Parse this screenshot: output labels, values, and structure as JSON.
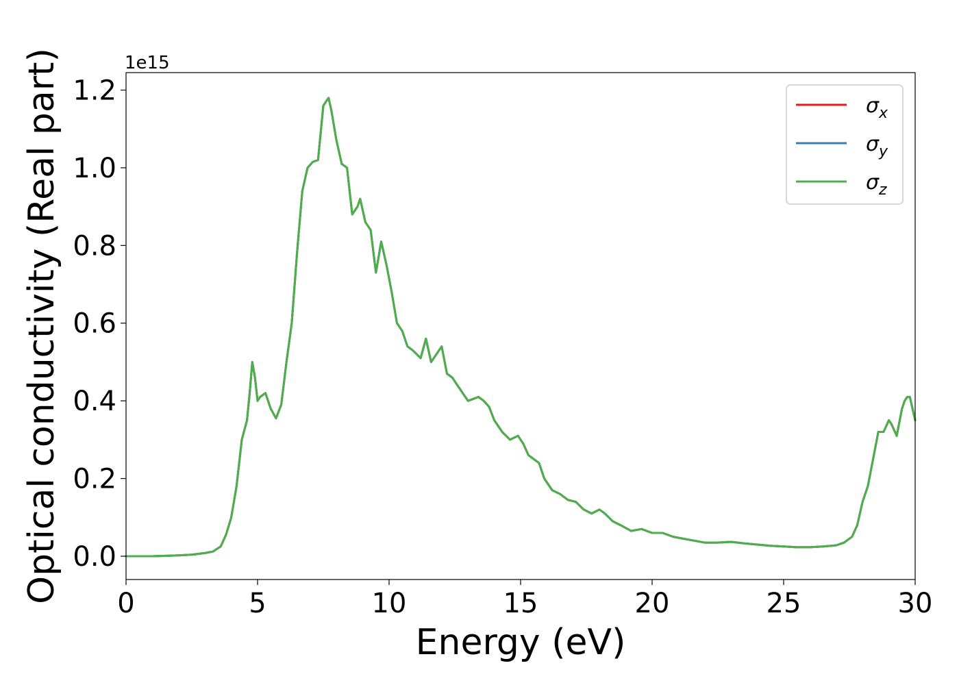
{
  "chart_data": {
    "type": "line",
    "xlabel": "Energy (eV)",
    "ylabel": "Optical conductivity (Real part)",
    "y_offset_text": "1e15",
    "y_multiplier": 1000000000000000.0,
    "xlim": [
      0,
      30
    ],
    "ylim": [
      -0.06,
      1.245
    ],
    "xticks": [
      0,
      5,
      10,
      15,
      20,
      25,
      30
    ],
    "xtick_labels": [
      "0",
      "5",
      "10",
      "15",
      "20",
      "25",
      "30"
    ],
    "yticks": [
      0.0,
      0.2,
      0.4,
      0.6,
      0.8,
      1.0,
      1.2
    ],
    "ytick_labels": [
      "0.0",
      "0.2",
      "0.4",
      "0.6",
      "0.8",
      "1.0",
      "1.2"
    ],
    "grid": false,
    "legend_position": "top-right",
    "x": [
      0,
      1,
      2,
      2.5,
      3,
      3.3,
      3.6,
      3.8,
      4.0,
      4.2,
      4.4,
      4.6,
      4.7,
      4.8,
      4.9,
      5.0,
      5.1,
      5.3,
      5.5,
      5.7,
      5.9,
      6.1,
      6.3,
      6.5,
      6.7,
      6.9,
      7.1,
      7.3,
      7.5,
      7.6,
      7.7,
      7.8,
      8.0,
      8.2,
      8.4,
      8.6,
      8.8,
      8.9,
      9.1,
      9.3,
      9.5,
      9.7,
      9.9,
      10.1,
      10.3,
      10.5,
      10.7,
      10.9,
      11.2,
      11.4,
      11.6,
      11.8,
      12.0,
      12.2,
      12.4,
      12.6,
      12.8,
      13.0,
      13.2,
      13.4,
      13.6,
      13.8,
      14.0,
      14.3,
      14.6,
      14.9,
      15.1,
      15.3,
      15.5,
      15.7,
      15.9,
      16.2,
      16.5,
      16.8,
      17.1,
      17.4,
      17.7,
      18.0,
      18.2,
      18.5,
      18.8,
      19.2,
      19.6,
      20.0,
      20.4,
      20.8,
      21.2,
      21.6,
      22.0,
      22.5,
      23.0,
      23.5,
      24.0,
      24.5,
      25.0,
      25.5,
      26.0,
      26.5,
      27.0,
      27.3,
      27.6,
      27.8,
      28.0,
      28.2,
      28.4,
      28.6,
      28.8,
      29.0,
      29.1,
      29.3,
      29.5,
      29.6,
      29.7,
      29.8,
      30.0
    ],
    "series": [
      {
        "name": "σx",
        "color": "#e41a1c",
        "values": [
          0.0,
          0.0,
          0.002,
          0.004,
          0.008,
          0.012,
          0.025,
          0.055,
          0.1,
          0.18,
          0.3,
          0.35,
          0.42,
          0.5,
          0.46,
          0.4,
          0.41,
          0.42,
          0.38,
          0.355,
          0.39,
          0.5,
          0.6,
          0.78,
          0.94,
          1.0,
          1.015,
          1.02,
          1.16,
          1.17,
          1.18,
          1.15,
          1.07,
          1.01,
          1.0,
          0.88,
          0.9,
          0.92,
          0.86,
          0.84,
          0.73,
          0.81,
          0.75,
          0.68,
          0.6,
          0.58,
          0.54,
          0.53,
          0.51,
          0.56,
          0.5,
          0.52,
          0.54,
          0.47,
          0.46,
          0.44,
          0.42,
          0.4,
          0.405,
          0.41,
          0.4,
          0.385,
          0.35,
          0.32,
          0.3,
          0.31,
          0.29,
          0.26,
          0.25,
          0.24,
          0.2,
          0.17,
          0.16,
          0.145,
          0.14,
          0.12,
          0.11,
          0.12,
          0.11,
          0.09,
          0.08,
          0.065,
          0.07,
          0.06,
          0.06,
          0.05,
          0.045,
          0.04,
          0.035,
          0.035,
          0.037,
          0.033,
          0.03,
          0.027,
          0.025,
          0.023,
          0.023,
          0.025,
          0.028,
          0.035,
          0.05,
          0.08,
          0.14,
          0.18,
          0.25,
          0.32,
          0.32,
          0.35,
          0.34,
          0.31,
          0.38,
          0.4,
          0.41,
          0.41,
          0.35
        ]
      },
      {
        "name": "σy",
        "color": "#377eb8",
        "values": [
          0.0,
          0.0,
          0.002,
          0.004,
          0.008,
          0.012,
          0.025,
          0.055,
          0.1,
          0.18,
          0.3,
          0.35,
          0.42,
          0.5,
          0.46,
          0.4,
          0.41,
          0.42,
          0.38,
          0.355,
          0.39,
          0.5,
          0.6,
          0.78,
          0.94,
          1.0,
          1.015,
          1.02,
          1.16,
          1.17,
          1.18,
          1.15,
          1.07,
          1.01,
          1.0,
          0.88,
          0.9,
          0.92,
          0.86,
          0.84,
          0.73,
          0.81,
          0.75,
          0.68,
          0.6,
          0.58,
          0.54,
          0.53,
          0.51,
          0.56,
          0.5,
          0.52,
          0.54,
          0.47,
          0.46,
          0.44,
          0.42,
          0.4,
          0.405,
          0.41,
          0.4,
          0.385,
          0.35,
          0.32,
          0.3,
          0.31,
          0.29,
          0.26,
          0.25,
          0.24,
          0.2,
          0.17,
          0.16,
          0.145,
          0.14,
          0.12,
          0.11,
          0.12,
          0.11,
          0.09,
          0.08,
          0.065,
          0.07,
          0.06,
          0.06,
          0.05,
          0.045,
          0.04,
          0.035,
          0.035,
          0.037,
          0.033,
          0.03,
          0.027,
          0.025,
          0.023,
          0.023,
          0.025,
          0.028,
          0.035,
          0.05,
          0.08,
          0.14,
          0.18,
          0.25,
          0.32,
          0.32,
          0.35,
          0.34,
          0.31,
          0.38,
          0.4,
          0.41,
          0.41,
          0.35
        ]
      },
      {
        "name": "σz",
        "color": "#4daf4a",
        "values": [
          0.0,
          0.0,
          0.002,
          0.004,
          0.008,
          0.012,
          0.025,
          0.055,
          0.1,
          0.18,
          0.3,
          0.35,
          0.42,
          0.5,
          0.46,
          0.4,
          0.41,
          0.42,
          0.38,
          0.355,
          0.39,
          0.5,
          0.6,
          0.78,
          0.94,
          1.0,
          1.015,
          1.02,
          1.16,
          1.17,
          1.18,
          1.15,
          1.07,
          1.01,
          1.0,
          0.88,
          0.9,
          0.92,
          0.86,
          0.84,
          0.73,
          0.81,
          0.75,
          0.68,
          0.6,
          0.58,
          0.54,
          0.53,
          0.51,
          0.56,
          0.5,
          0.52,
          0.54,
          0.47,
          0.46,
          0.44,
          0.42,
          0.4,
          0.405,
          0.41,
          0.4,
          0.385,
          0.35,
          0.32,
          0.3,
          0.31,
          0.29,
          0.26,
          0.25,
          0.24,
          0.2,
          0.17,
          0.16,
          0.145,
          0.14,
          0.12,
          0.11,
          0.12,
          0.11,
          0.09,
          0.08,
          0.065,
          0.07,
          0.06,
          0.06,
          0.05,
          0.045,
          0.04,
          0.035,
          0.035,
          0.037,
          0.033,
          0.03,
          0.027,
          0.025,
          0.023,
          0.023,
          0.025,
          0.028,
          0.035,
          0.05,
          0.08,
          0.14,
          0.18,
          0.25,
          0.32,
          0.32,
          0.35,
          0.34,
          0.31,
          0.38,
          0.4,
          0.41,
          0.41,
          0.35
        ]
      }
    ],
    "legend": [
      {
        "symbol": "σ",
        "subscript": "x",
        "color": "#e41a1c"
      },
      {
        "symbol": "σ",
        "subscript": "y",
        "color": "#377eb8"
      },
      {
        "symbol": "σ",
        "subscript": "z",
        "color": "#4daf4a"
      }
    ]
  }
}
